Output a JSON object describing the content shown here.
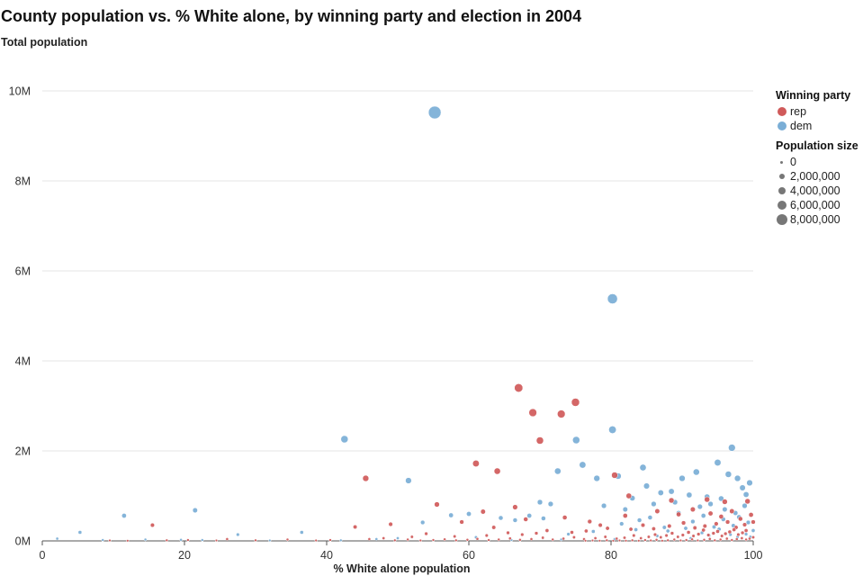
{
  "chart_data": {
    "type": "scatter",
    "title": "County population vs. % White alone, by winning party and election in 2004",
    "ylabel": "Total population",
    "xlabel": "% White alone population",
    "xlim": [
      0,
      100
    ],
    "ylim": [
      0,
      10000000
    ],
    "x_ticks": [
      "0",
      "20",
      "40",
      "60",
      "80",
      "100"
    ],
    "y_ticks": [
      "0M",
      "2M",
      "4M",
      "6M",
      "8M",
      "10M"
    ],
    "grid": "horizontal",
    "legend_position": "right",
    "legend": {
      "color_title": "Winning party",
      "color_entries": [
        {
          "label": "rep",
          "color": "#d05a5a"
        },
        {
          "label": "dem",
          "color": "#7aaed6"
        }
      ],
      "size_title": "Population size",
      "size_entries": [
        "0",
        "2,000,000",
        "4,000,000",
        "6,000,000",
        "8,000,000"
      ]
    },
    "series": [
      {
        "name": "dem",
        "color": "#7aaed6",
        "points": [
          [
            55.2,
            9520000
          ],
          [
            80.2,
            5380000
          ],
          [
            42.5,
            2260000
          ],
          [
            80.2,
            2470000
          ],
          [
            75.1,
            2240000
          ],
          [
            97.0,
            2070000
          ],
          [
            51.5,
            1340000
          ],
          [
            72.5,
            1550000
          ],
          [
            76.0,
            1690000
          ],
          [
            81.0,
            1440000
          ],
          [
            84.5,
            1630000
          ],
          [
            78.0,
            1390000
          ],
          [
            95.0,
            1740000
          ],
          [
            92.0,
            1530000
          ],
          [
            90.0,
            1390000
          ],
          [
            96.5,
            1480000
          ],
          [
            97.8,
            1390000
          ],
          [
            99.5,
            1290000
          ],
          [
            98.5,
            1180000
          ],
          [
            85.0,
            1220000
          ],
          [
            87.0,
            1070000
          ],
          [
            83.0,
            950000
          ],
          [
            88.5,
            1100000
          ],
          [
            91.0,
            1020000
          ],
          [
            93.5,
            980000
          ],
          [
            95.5,
            940000
          ],
          [
            99.0,
            1030000
          ],
          [
            11.5,
            560000
          ],
          [
            21.5,
            680000
          ],
          [
            70.0,
            860000
          ],
          [
            71.5,
            820000
          ],
          [
            60.0,
            600000
          ],
          [
            57.5,
            570000
          ],
          [
            64.5,
            510000
          ],
          [
            66.5,
            460000
          ],
          [
            68.5,
            560000
          ],
          [
            70.5,
            500000
          ],
          [
            53.5,
            410000
          ],
          [
            79.0,
            780000
          ],
          [
            82.0,
            700000
          ],
          [
            86.0,
            820000
          ],
          [
            89.0,
            860000
          ],
          [
            92.5,
            760000
          ],
          [
            94.0,
            820000
          ],
          [
            96.0,
            700000
          ],
          [
            97.5,
            620000
          ],
          [
            98.8,
            780000
          ],
          [
            93.0,
            560000
          ],
          [
            89.5,
            620000
          ],
          [
            85.5,
            520000
          ],
          [
            84.0,
            460000
          ],
          [
            81.5,
            380000
          ],
          [
            91.5,
            430000
          ],
          [
            95.8,
            480000
          ],
          [
            98.0,
            530000
          ],
          [
            99.3,
            410000
          ],
          [
            97.2,
            340000
          ],
          [
            94.5,
            310000
          ],
          [
            90.5,
            280000
          ],
          [
            87.5,
            300000
          ],
          [
            5.3,
            190000
          ],
          [
            2.1,
            50000
          ],
          [
            8.5,
            20000
          ],
          [
            14.5,
            30000
          ],
          [
            19.5,
            25000
          ],
          [
            22.5,
            20000
          ],
          [
            27.5,
            140000
          ],
          [
            36.5,
            190000
          ],
          [
            42.0,
            15000
          ],
          [
            32.0,
            10000
          ],
          [
            47.0,
            40000
          ],
          [
            50.0,
            60000
          ],
          [
            61.0,
            80000
          ],
          [
            74.0,
            150000
          ],
          [
            77.5,
            210000
          ],
          [
            83.5,
            250000
          ],
          [
            88.0,
            220000
          ],
          [
            92.8,
            180000
          ],
          [
            96.8,
            140000
          ],
          [
            99.6,
            90000
          ],
          [
            100.0,
            230000
          ],
          [
            99.0,
            150000
          ],
          [
            97.8,
            90000
          ],
          [
            95.2,
            260000
          ],
          [
            93.8,
            120000
          ],
          [
            91.2,
            60000
          ],
          [
            86.5,
            110000
          ],
          [
            80.5,
            40000
          ],
          [
            73.0,
            30000
          ],
          [
            66.0,
            20000
          ]
        ]
      },
      {
        "name": "rep",
        "color": "#d05a5a",
        "points": [
          [
            67.0,
            3400000
          ],
          [
            69.0,
            2850000
          ],
          [
            73.0,
            2820000
          ],
          [
            75.0,
            3080000
          ],
          [
            70.0,
            2230000
          ],
          [
            61.0,
            1720000
          ],
          [
            64.0,
            1550000
          ],
          [
            45.5,
            1390000
          ],
          [
            80.5,
            1460000
          ],
          [
            82.5,
            1000000
          ],
          [
            88.5,
            900000
          ],
          [
            93.5,
            920000
          ],
          [
            96.0,
            870000
          ],
          [
            99.2,
            880000
          ],
          [
            66.5,
            750000
          ],
          [
            55.5,
            810000
          ],
          [
            62.0,
            650000
          ],
          [
            15.5,
            350000
          ],
          [
            44.0,
            310000
          ],
          [
            49.0,
            370000
          ],
          [
            59.0,
            420000
          ],
          [
            63.5,
            300000
          ],
          [
            68.0,
            480000
          ],
          [
            73.5,
            520000
          ],
          [
            77.0,
            430000
          ],
          [
            78.5,
            350000
          ],
          [
            82.0,
            560000
          ],
          [
            86.5,
            660000
          ],
          [
            89.5,
            590000
          ],
          [
            91.5,
            700000
          ],
          [
            94.0,
            610000
          ],
          [
            95.5,
            540000
          ],
          [
            97.0,
            660000
          ],
          [
            98.2,
            490000
          ],
          [
            99.7,
            580000
          ],
          [
            100.0,
            420000
          ],
          [
            98.8,
            360000
          ],
          [
            97.6,
            300000
          ],
          [
            96.4,
            420000
          ],
          [
            94.8,
            380000
          ],
          [
            93.2,
            330000
          ],
          [
            91.8,
            290000
          ],
          [
            90.2,
            400000
          ],
          [
            88.2,
            330000
          ],
          [
            86.0,
            270000
          ],
          [
            84.5,
            350000
          ],
          [
            82.8,
            260000
          ],
          [
            79.5,
            280000
          ],
          [
            76.5,
            220000
          ],
          [
            74.5,
            190000
          ],
          [
            71.0,
            230000
          ],
          [
            69.5,
            170000
          ],
          [
            67.5,
            140000
          ],
          [
            65.5,
            180000
          ],
          [
            62.5,
            120000
          ],
          [
            58.0,
            100000
          ],
          [
            54.0,
            160000
          ],
          [
            52.0,
            90000
          ],
          [
            48.0,
            60000
          ],
          [
            46.0,
            40000
          ],
          [
            40.5,
            20000
          ],
          [
            38.5,
            10000
          ],
          [
            34.5,
            30000
          ],
          [
            30.0,
            15000
          ],
          [
            26.0,
            40000
          ],
          [
            24.5,
            10000
          ],
          [
            20.5,
            20000
          ],
          [
            17.5,
            15000
          ],
          [
            12.0,
            5000
          ],
          [
            9.5,
            10000
          ],
          [
            99.0,
            230000
          ],
          [
            98.5,
            180000
          ],
          [
            97.9,
            140000
          ],
          [
            97.3,
            250000
          ],
          [
            96.7,
            200000
          ],
          [
            96.1,
            160000
          ],
          [
            95.6,
            110000
          ],
          [
            95.0,
            210000
          ],
          [
            94.4,
            170000
          ],
          [
            93.7,
            130000
          ],
          [
            93.0,
            240000
          ],
          [
            92.3,
            150000
          ],
          [
            91.6,
            110000
          ],
          [
            90.9,
            190000
          ],
          [
            90.1,
            130000
          ],
          [
            89.4,
            90000
          ],
          [
            88.6,
            170000
          ],
          [
            87.8,
            120000
          ],
          [
            87.0,
            80000
          ],
          [
            86.2,
            140000
          ],
          [
            85.3,
            90000
          ],
          [
            84.2,
            60000
          ],
          [
            83.2,
            120000
          ],
          [
            81.9,
            70000
          ],
          [
            80.8,
            50000
          ],
          [
            79.2,
            90000
          ],
          [
            77.8,
            60000
          ],
          [
            76.2,
            40000
          ],
          [
            74.8,
            80000
          ],
          [
            73.3,
            50000
          ],
          [
            71.8,
            30000
          ],
          [
            70.4,
            70000
          ],
          [
            68.8,
            40000
          ],
          [
            67.2,
            25000
          ],
          [
            65.8,
            55000
          ],
          [
            64.2,
            30000
          ],
          [
            62.8,
            20000
          ],
          [
            61.2,
            45000
          ],
          [
            59.8,
            25000
          ],
          [
            58.2,
            15000
          ],
          [
            56.6,
            35000
          ],
          [
            55.0,
            20000
          ],
          [
            53.2,
            10000
          ],
          [
            51.4,
            30000
          ],
          [
            49.6,
            15000
          ],
          [
            100.0,
            80000
          ],
          [
            99.5,
            50000
          ],
          [
            99.0,
            30000
          ],
          [
            98.4,
            60000
          ],
          [
            97.7,
            40000
          ],
          [
            97.0,
            20000
          ],
          [
            96.3,
            50000
          ],
          [
            95.4,
            30000
          ],
          [
            94.6,
            15000
          ],
          [
            93.9,
            45000
          ],
          [
            93.1,
            25000
          ],
          [
            92.2,
            10000
          ],
          [
            91.4,
            35000
          ],
          [
            90.6,
            20000
          ],
          [
            89.8,
            10000
          ],
          [
            88.9,
            30000
          ],
          [
            88.0,
            15000
          ],
          [
            87.2,
            5000
          ],
          [
            86.4,
            25000
          ],
          [
            85.6,
            10000
          ],
          [
            84.8,
            20000
          ],
          [
            83.9,
            5000
          ],
          [
            83.0,
            15000
          ],
          [
            82.1,
            5000
          ],
          [
            81.2,
            10000
          ],
          [
            80.3,
            5000
          ],
          [
            79.4,
            15000
          ],
          [
            78.4,
            5000
          ],
          [
            77.4,
            10000
          ],
          [
            76.4,
            5000
          ]
        ]
      }
    ]
  }
}
